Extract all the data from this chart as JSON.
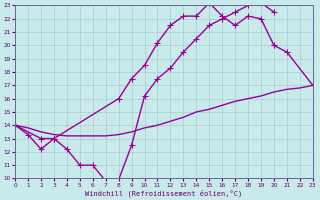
{
  "xlabel": "Windchill (Refroidissement éolien,°C)",
  "bg_color": "#c8eaea",
  "line_color": "#990099",
  "grid_color": "#aacccc",
  "xlim": [
    0,
    23
  ],
  "ylim": [
    10,
    23
  ],
  "line1_x": [
    0,
    1,
    2,
    3,
    4,
    5,
    6,
    7,
    8,
    9,
    10,
    11,
    12,
    13,
    14,
    15,
    16,
    17,
    18,
    19,
    20
  ],
  "line1_y": [
    14.0,
    13.3,
    12.2,
    13.0,
    12.2,
    11.0,
    11.0,
    9.8,
    9.9,
    12.5,
    16.2,
    17.5,
    18.3,
    19.5,
    20.5,
    21.5,
    22.0,
    22.5,
    23.0,
    23.2,
    22.5
  ],
  "line2_x": [
    0,
    2,
    3,
    8,
    9,
    10,
    11,
    12,
    13,
    14,
    15,
    16,
    17,
    18,
    19,
    20,
    21,
    23
  ],
  "line2_y": [
    14.0,
    13.0,
    13.0,
    16.0,
    17.5,
    18.5,
    20.2,
    21.5,
    22.2,
    22.2,
    23.2,
    22.2,
    21.5,
    22.2,
    22.0,
    20.0,
    19.5,
    17.0
  ],
  "line3_x": [
    0,
    1,
    2,
    3,
    4,
    5,
    6,
    7,
    8,
    9,
    10,
    11,
    12,
    13,
    14,
    15,
    16,
    17,
    18,
    19,
    20,
    21,
    22,
    23
  ],
  "line3_y": [
    14.0,
    13.8,
    13.5,
    13.3,
    13.2,
    13.2,
    13.2,
    13.2,
    13.3,
    13.5,
    13.8,
    14.0,
    14.3,
    14.6,
    15.0,
    15.2,
    15.5,
    15.8,
    16.0,
    16.2,
    16.5,
    16.7,
    16.8,
    17.0
  ],
  "marker": "+",
  "markersize": 4,
  "linewidth": 1.0
}
